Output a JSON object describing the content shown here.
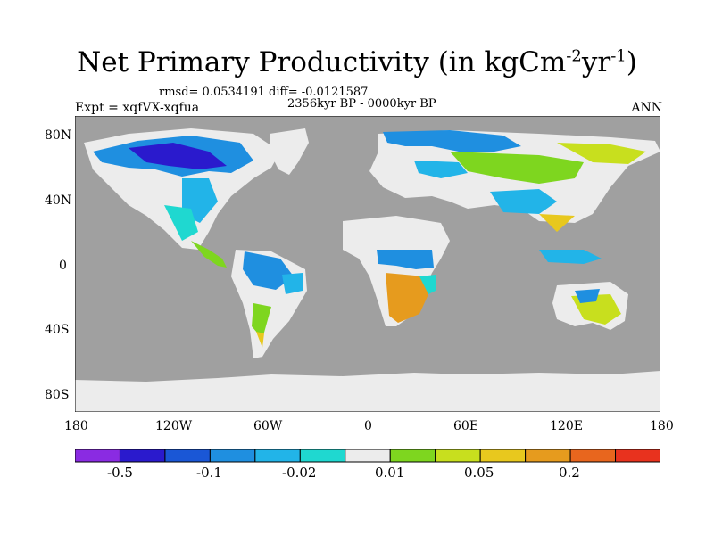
{
  "title": {
    "text": "Net Primary Productivity (in kgCm",
    "sup1": "-2",
    "mid": "yr",
    "sup2": "-1",
    "end": ")"
  },
  "stats": "rmsd= 0.0534191 diff= -0.0121587",
  "period": "2356kyr BP - 0000kyr BP",
  "experiment": "Expt = xqfVX-xqfua",
  "season": "ANN",
  "map": {
    "lat_ticks": [
      "80N",
      "40N",
      "0",
      "40S",
      "80S"
    ],
    "lon_ticks": [
      "180",
      "120W",
      "60W",
      "0",
      "60E",
      "120E",
      "180"
    ]
  },
  "colorbar": {
    "colors": [
      "#8a2be2",
      "#2a1acd",
      "#1a57d6",
      "#1f8fe0",
      "#22b4e8",
      "#1fd8d0",
      "#ececec",
      "#7ed61f",
      "#c8df1e",
      "#e8c81e",
      "#e69b1e",
      "#e8661e",
      "#e8321e"
    ],
    "labels": [
      "-0.5",
      "-0.1",
      "-0.02",
      "0.01",
      "0.05",
      "0.2"
    ]
  },
  "palette": {
    "ocean": "#a0a0a0",
    "neutral": "#ececec"
  }
}
